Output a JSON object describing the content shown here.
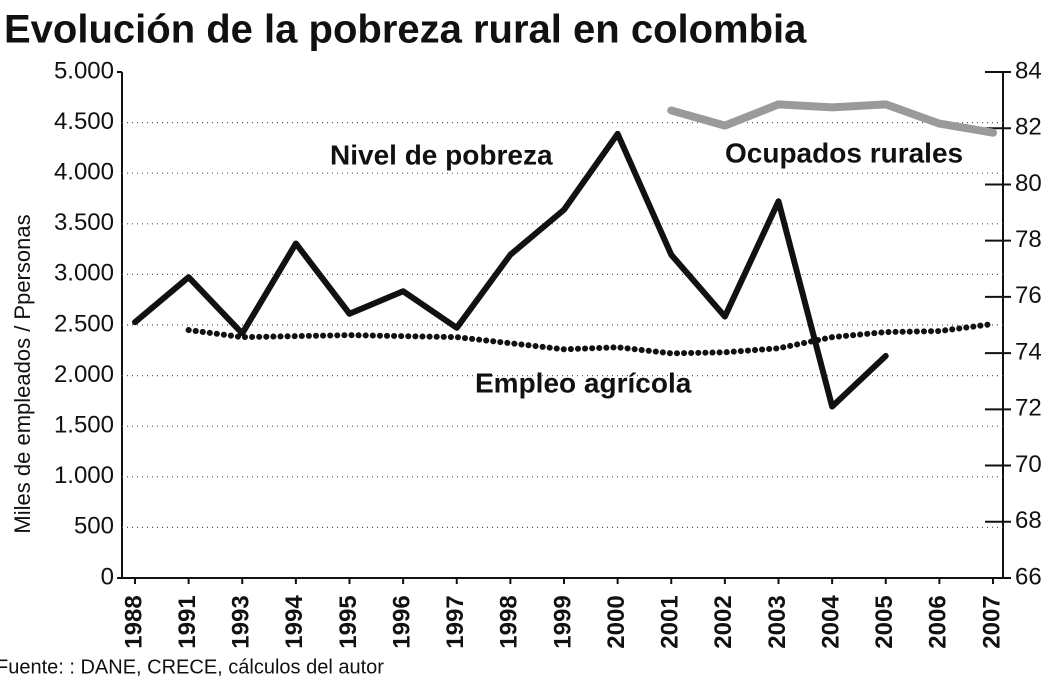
{
  "chart_data": {
    "type": "line",
    "title": "Evolución de la pobreza rural en colombia",
    "y_label": "Miles de empleados / Ppersonas",
    "source": "Fuente: : DANE, CRECE, cálculos del autor",
    "categories": [
      "1988",
      "1991",
      "1993",
      "1994",
      "1995",
      "1996",
      "1997",
      "1998",
      "1999",
      "2000",
      "2001",
      "2002",
      "2003",
      "2004",
      "2005",
      "2006",
      "2007"
    ],
    "series": [
      {
        "name": "Nivel de pobreza",
        "color": "#111111",
        "axis": "y2",
        "style": "solid",
        "values": [
          75.1,
          76.7,
          74.7,
          77.9,
          75.4,
          76.2,
          74.9,
          77.5,
          79.1,
          81.8,
          77.5,
          75.3,
          79.4,
          72.1,
          73.9,
          null,
          null
        ]
      },
      {
        "name": "Ocupados rurales",
        "color": "#9a9a9a",
        "style": "solid",
        "values": [
          null,
          null,
          null,
          null,
          null,
          null,
          null,
          null,
          null,
          null,
          4620,
          4470,
          4680,
          4650,
          4680,
          4490,
          4400
        ]
      },
      {
        "name": "Empleo agrícola",
        "color": "#111111",
        "style": "dotted",
        "values": [
          null,
          2450,
          2380,
          2390,
          2400,
          2390,
          2380,
          2320,
          2260,
          2280,
          2220,
          2230,
          2270,
          2380,
          2430,
          2440,
          2510
        ]
      }
    ],
    "ylim": [
      0,
      5000
    ],
    "yticks": [
      0,
      500,
      {
        "value": 1000,
        "label": "1.000"
      },
      {
        "value": 1500,
        "label": "1.500"
      },
      {
        "value": 2000,
        "label": "2.000"
      },
      {
        "value": 2500,
        "label": "2.500"
      },
      {
        "value": 3000,
        "label": "3.000"
      },
      {
        "value": 3500,
        "label": "3.500"
      },
      {
        "value": 4000,
        "label": "4.000"
      },
      {
        "value": 4500,
        "label": "4.500"
      },
      {
        "value": 5000,
        "label": "5.000"
      }
    ],
    "y2lim": [
      66,
      84
    ],
    "y2ticks": [
      66,
      68,
      70,
      72,
      74,
      76,
      78,
      80,
      82,
      84
    ],
    "grid": true
  }
}
